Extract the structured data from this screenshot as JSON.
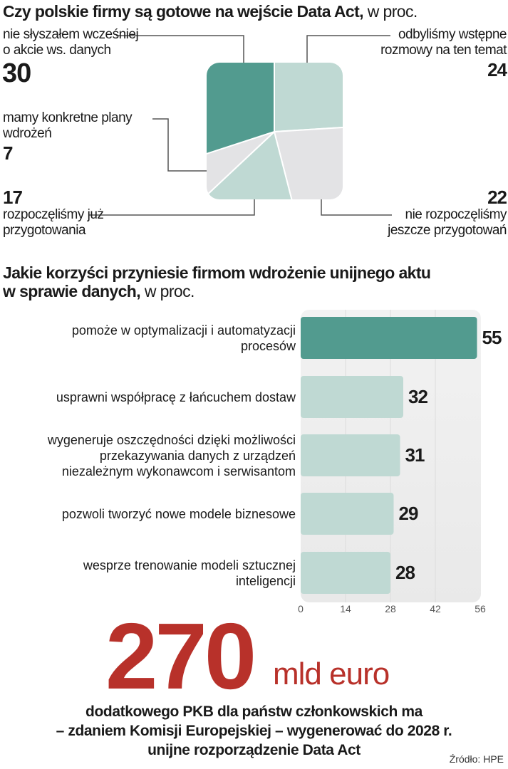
{
  "chart_data": [
    {
      "type": "pie",
      "title": "Czy polskie firmy są gotowe na wejście Data Act,",
      "unit": "w proc.",
      "shape": "rounded-square",
      "slices": [
        {
          "label_lines": [
            "odbyliśmy wstępne",
            "rozmowy na ten temat"
          ],
          "value": 24,
          "color": "#bfd9d3"
        },
        {
          "label_lines": [
            "nie rozpoczęliśmy",
            "jeszcze przygotowań"
          ],
          "value": 22,
          "color": "#e3e3e5"
        },
        {
          "label_lines": [
            "rozpoczęliśmy już",
            "przygotowania"
          ],
          "value": 17,
          "color": "#bfd9d3"
        },
        {
          "label_lines": [
            "mamy konkretne plany",
            "wdrożeń"
          ],
          "value": 7,
          "color": "#e3e3e5"
        },
        {
          "label_lines": [
            "nie słyszałem wcześniej",
            "o akcie ws. danych"
          ],
          "value": 30,
          "color": "#529b8f"
        }
      ]
    },
    {
      "type": "bar",
      "orientation": "horizontal",
      "title_lines": [
        "Jakie korzyści przyniesie firmom wdrożenie unijnego aktu",
        "w sprawie danych,"
      ],
      "unit": "w proc.",
      "categories": [
        [
          "pomoże w optymalizacji i automatyzacji",
          "procesów"
        ],
        [
          "usprawni współpracę z łańcuchem dostaw"
        ],
        [
          "wygeneruje oszczędności dzięki możliwości",
          "przekazywania danych z urządzeń",
          "niezależnym wykonawcom i serwisantom"
        ],
        [
          "pozwoli tworzyć nowe modele biznesowe"
        ],
        [
          "wesprze trenowanie modeli sztucznej",
          "inteligencji"
        ]
      ],
      "values": [
        55,
        32,
        31,
        29,
        28
      ],
      "colors": [
        "#529b8f",
        "#bfd9d3",
        "#bfd9d3",
        "#bfd9d3",
        "#bfd9d3"
      ],
      "xlim": [
        0,
        56
      ],
      "xticks": [
        "0",
        "14",
        "28",
        "42",
        "56"
      ],
      "grid": true
    }
  ],
  "highlight": {
    "number": "270",
    "unit": "mld euro",
    "color": "#b8312a",
    "caption_lines": [
      "dodatkowego PKB dla państw członkowskich ma",
      "– zdaniem Komisji Europejskiej – wygenerować do 2028 r.",
      "unijne rozporządzenie Data Act"
    ]
  },
  "source": "Źródło: HPE"
}
